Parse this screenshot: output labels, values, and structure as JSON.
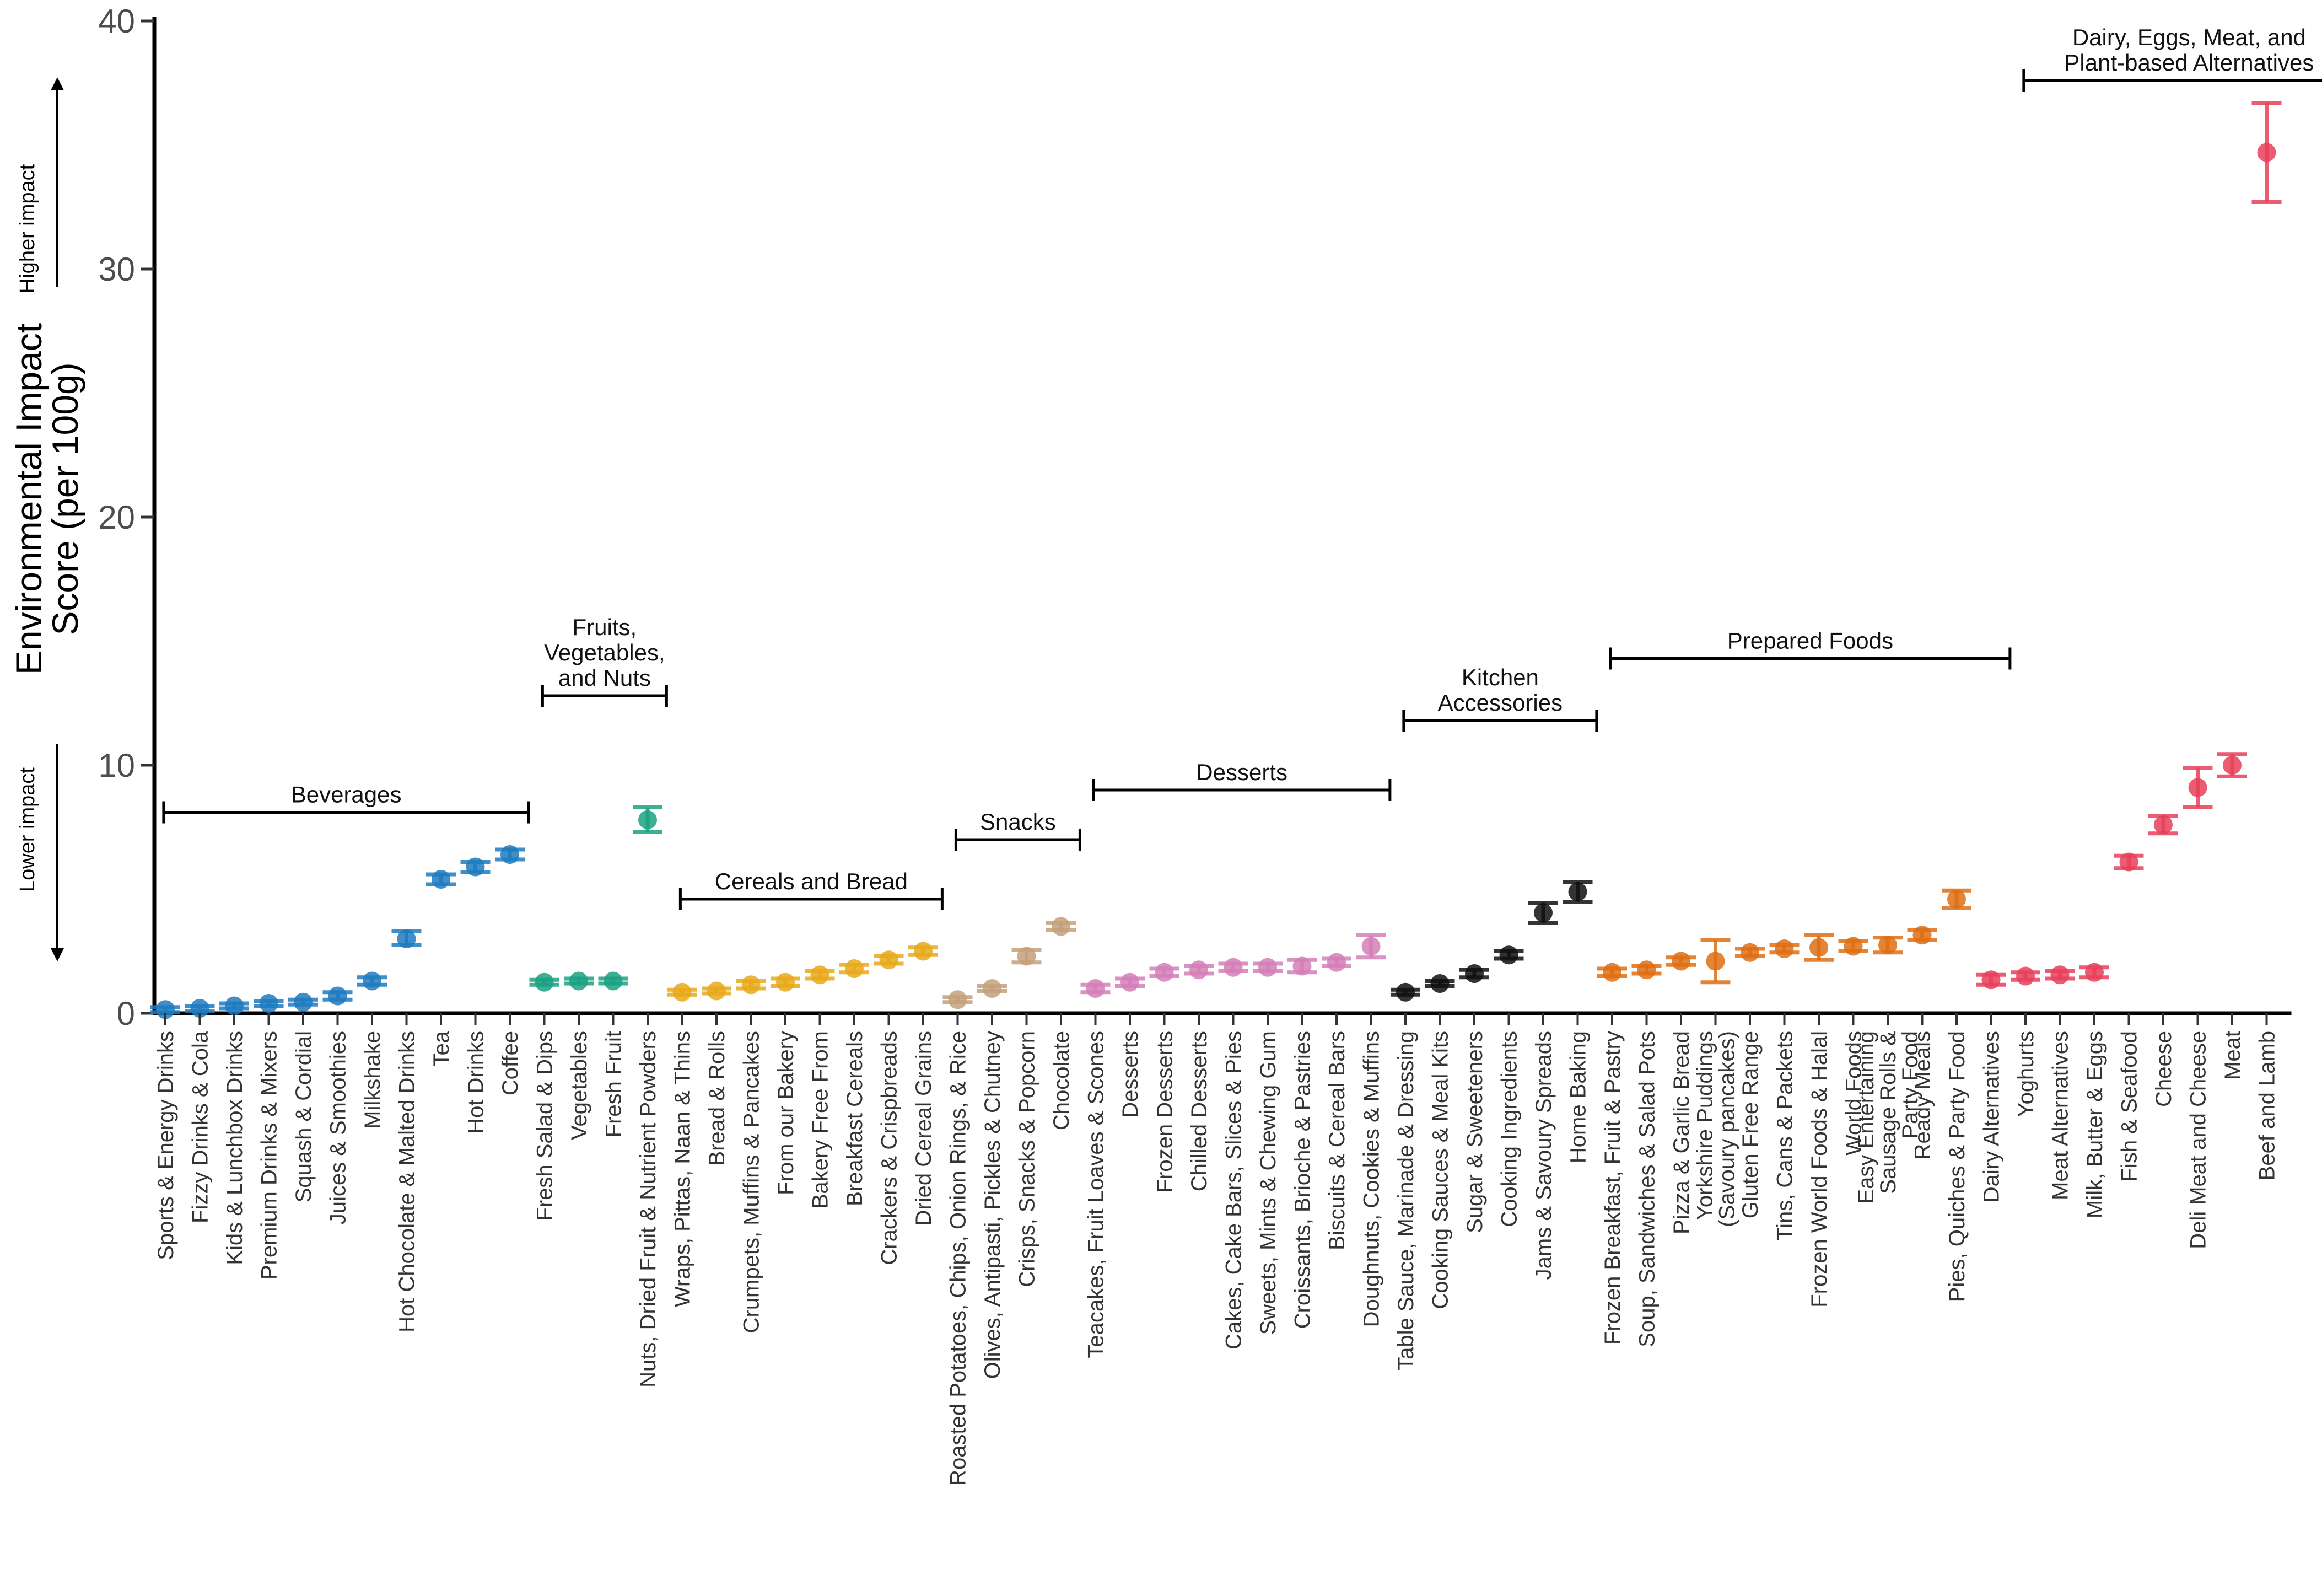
{
  "chart_data": {
    "type": "scatter",
    "ylabel_lines": [
      "Environmental Impact",
      "Score (per 100g)"
    ],
    "ylim": [
      0,
      40
    ],
    "yticks": [
      0,
      10,
      20,
      30,
      40
    ],
    "grid": false,
    "annotations": {
      "higher": "Higher impact",
      "lower": "Lower impact"
    },
    "colors": {
      "Beverages": "#1f7bbf",
      "Fruits, Vegetables, and Nuts": "#1aa183",
      "Cereals and Bread": "#e8a91a",
      "Snacks": "#c4a07a",
      "Desserts": "#d47fb8",
      "Kitchen Accessories": "#111111",
      "Prepared Foods": "#de6f14",
      "Dairy, Eggs, Meat, and Plant-based Alternatives": "#e8405a"
    },
    "groups": [
      {
        "label_lines": [
          "Beverages"
        ],
        "first": 0,
        "last": 11,
        "y": 8.1
      },
      {
        "label_lines": [
          "Fruits,",
          "Vegetables,",
          "and Nuts"
        ],
        "first": 11,
        "last": 15,
        "y": 12.8
      },
      {
        "label_lines": [
          "Cereals and Bread"
        ],
        "first": 15,
        "last": 23,
        "y": 4.6
      },
      {
        "label_lines": [
          "Snacks"
        ],
        "first": 23,
        "last": 27,
        "y": 7.0
      },
      {
        "label_lines": [
          "Desserts"
        ],
        "first": 27,
        "last": 36,
        "y": 9.0
      },
      {
        "label_lines": [
          "Kitchen",
          "Accessories"
        ],
        "first": 36,
        "last": 42,
        "y": 11.8
      },
      {
        "label_lines": [
          "Prepared Foods"
        ],
        "first": 42,
        "last": 54,
        "y": 14.3
      },
      {
        "label_lines": [
          "Dairy, Eggs, Meat, and",
          "Plant-based Alternatives"
        ],
        "first": 54,
        "last": 64,
        "y": 37.6
      }
    ],
    "series": [
      {
        "category_lines": [
          "Sports & Energy Drinks"
        ],
        "group": "Beverages",
        "value": 0.15,
        "low": 0.05,
        "high": 0.25
      },
      {
        "category_lines": [
          "Fizzy Drinks & Cola"
        ],
        "group": "Beverages",
        "value": 0.2,
        "low": 0.1,
        "high": 0.3
      },
      {
        "category_lines": [
          "Kids & Lunchbox Drinks"
        ],
        "group": "Beverages",
        "value": 0.3,
        "low": 0.2,
        "high": 0.4
      },
      {
        "category_lines": [
          "Premium Drinks & Mixers"
        ],
        "group": "Beverages",
        "value": 0.4,
        "low": 0.3,
        "high": 0.5
      },
      {
        "category_lines": [
          "Squash & Cordial"
        ],
        "group": "Beverages",
        "value": 0.45,
        "low": 0.35,
        "high": 0.55
      },
      {
        "category_lines": [
          "Juices & Smoothies"
        ],
        "group": "Beverages",
        "value": 0.7,
        "low": 0.55,
        "high": 0.85
      },
      {
        "category_lines": [
          "Milkshake"
        ],
        "group": "Beverages",
        "value": 1.3,
        "low": 1.15,
        "high": 1.45
      },
      {
        "category_lines": [
          "Hot Chocolate & Malted Drinks"
        ],
        "group": "Beverages",
        "value": 3.0,
        "low": 2.75,
        "high": 3.3
      },
      {
        "category_lines": [
          "Tea"
        ],
        "group": "Beverages",
        "value": 5.4,
        "low": 5.2,
        "high": 5.6
      },
      {
        "category_lines": [
          "Hot Drinks"
        ],
        "group": "Beverages",
        "value": 5.9,
        "low": 5.7,
        "high": 6.1
      },
      {
        "category_lines": [
          "Coffee"
        ],
        "group": "Beverages",
        "value": 6.4,
        "low": 6.2,
        "high": 6.6
      },
      {
        "category_lines": [
          "Fresh Salad & Dips"
        ],
        "group": "Fruits, Vegetables, and Nuts",
        "value": 1.25,
        "low": 1.15,
        "high": 1.35
      },
      {
        "category_lines": [
          "Vegetables"
        ],
        "group": "Fruits, Vegetables, and Nuts",
        "value": 1.3,
        "low": 1.2,
        "high": 1.4
      },
      {
        "category_lines": [
          "Fresh Fruit"
        ],
        "group": "Fruits, Vegetables, and Nuts",
        "value": 1.3,
        "low": 1.2,
        "high": 1.4
      },
      {
        "category_lines": [
          "Nuts, Dried Fruit & Nutrient Powders"
        ],
        "group": "Fruits, Vegetables, and Nuts",
        "value": 7.8,
        "low": 7.3,
        "high": 8.3
      },
      {
        "category_lines": [
          "Wraps, Pittas, Naan & Thins"
        ],
        "group": "Cereals and Bread",
        "value": 0.85,
        "low": 0.75,
        "high": 0.95
      },
      {
        "category_lines": [
          "Bread & Rolls"
        ],
        "group": "Cereals and Bread",
        "value": 0.9,
        "low": 0.8,
        "high": 1.0
      },
      {
        "category_lines": [
          "Crumpets, Muffins & Pancakes"
        ],
        "group": "Cereals and Bread",
        "value": 1.15,
        "low": 1.0,
        "high": 1.3
      },
      {
        "category_lines": [
          "From our Bakery"
        ],
        "group": "Cereals and Bread",
        "value": 1.25,
        "low": 1.1,
        "high": 1.4
      },
      {
        "category_lines": [
          "Bakery Free From"
        ],
        "group": "Cereals and Bread",
        "value": 1.55,
        "low": 1.4,
        "high": 1.7
      },
      {
        "category_lines": [
          "Breakfast Cereals"
        ],
        "group": "Cereals and Bread",
        "value": 1.8,
        "low": 1.65,
        "high": 1.95
      },
      {
        "category_lines": [
          "Crackers & Crispbreads"
        ],
        "group": "Cereals and Bread",
        "value": 2.15,
        "low": 2.0,
        "high": 2.3
      },
      {
        "category_lines": [
          "Dried Cereal Grains"
        ],
        "group": "Cereals and Bread",
        "value": 2.5,
        "low": 2.35,
        "high": 2.65
      },
      {
        "category_lines": [
          "Roasted Potatoes, Chips, Onion Rings, & Rice"
        ],
        "group": "Snacks",
        "value": 0.55,
        "low": 0.45,
        "high": 0.65
      },
      {
        "category_lines": [
          "Olives, Antipasti, Pickles & Chutney"
        ],
        "group": "Snacks",
        "value": 1.0,
        "low": 0.9,
        "high": 1.1
      },
      {
        "category_lines": [
          "Crisps, Snacks & Popcorn"
        ],
        "group": "Snacks",
        "value": 2.3,
        "low": 2.05,
        "high": 2.55
      },
      {
        "category_lines": [
          "Chocolate"
        ],
        "group": "Snacks",
        "value": 3.5,
        "low": 3.35,
        "high": 3.65
      },
      {
        "category_lines": [
          "Teacakes, Fruit Loaves & Scones"
        ],
        "group": "Desserts",
        "value": 1.0,
        "low": 0.85,
        "high": 1.15
      },
      {
        "category_lines": [
          "Desserts"
        ],
        "group": "Desserts",
        "value": 1.25,
        "low": 1.1,
        "high": 1.4
      },
      {
        "category_lines": [
          "Frozen Desserts"
        ],
        "group": "Desserts",
        "value": 1.65,
        "low": 1.5,
        "high": 1.8
      },
      {
        "category_lines": [
          "Chilled Desserts"
        ],
        "group": "Desserts",
        "value": 1.75,
        "low": 1.6,
        "high": 1.9
      },
      {
        "category_lines": [
          "Cakes, Cake Bars, Slices & Pies"
        ],
        "group": "Desserts",
        "value": 1.85,
        "low": 1.7,
        "high": 2.0
      },
      {
        "category_lines": [
          "Sweets, Mints & Chewing Gum"
        ],
        "group": "Desserts",
        "value": 1.85,
        "low": 1.7,
        "high": 2.0
      },
      {
        "category_lines": [
          "Croissants, Brioche & Pastries"
        ],
        "group": "Desserts",
        "value": 1.9,
        "low": 1.65,
        "high": 2.15
      },
      {
        "category_lines": [
          "Biscuits & Cereal Bars"
        ],
        "group": "Desserts",
        "value": 2.05,
        "low": 1.9,
        "high": 2.2
      },
      {
        "category_lines": [
          "Doughnuts, Cookies & Muffins"
        ],
        "group": "Desserts",
        "value": 2.7,
        "low": 2.25,
        "high": 3.15
      },
      {
        "category_lines": [
          "Table Sauce, Marinade & Dressing"
        ],
        "group": "Kitchen Accessories",
        "value": 0.85,
        "low": 0.75,
        "high": 0.95
      },
      {
        "category_lines": [
          "Cooking Sauces & Meal Kits"
        ],
        "group": "Kitchen Accessories",
        "value": 1.2,
        "low": 1.1,
        "high": 1.3
      },
      {
        "category_lines": [
          "Sugar & Sweeteners"
        ],
        "group": "Kitchen Accessories",
        "value": 1.6,
        "low": 1.45,
        "high": 1.75
      },
      {
        "category_lines": [
          "Cooking Ingredients"
        ],
        "group": "Kitchen Accessories",
        "value": 2.35,
        "low": 2.2,
        "high": 2.5
      },
      {
        "category_lines": [
          "Jams & Savoury Spreads"
        ],
        "group": "Kitchen Accessories",
        "value": 4.05,
        "low": 3.65,
        "high": 4.45
      },
      {
        "category_lines": [
          "Home Baking"
        ],
        "group": "Kitchen Accessories",
        "value": 4.9,
        "low": 4.5,
        "high": 5.3
      },
      {
        "category_lines": [
          "Frozen Breakfast, Fruit & Pastry"
        ],
        "group": "Prepared Foods",
        "value": 1.65,
        "low": 1.5,
        "high": 1.8
      },
      {
        "category_lines": [
          "Soup, Sandwiches & Salad Pots"
        ],
        "group": "Prepared Foods",
        "value": 1.75,
        "low": 1.6,
        "high": 1.9
      },
      {
        "category_lines": [
          "Pizza & Garlic Bread"
        ],
        "group": "Prepared Foods",
        "value": 2.1,
        "low": 1.95,
        "high": 2.25
      },
      {
        "category_lines": [
          "Yorkshire Puddings",
          "(Savoury pancakes)"
        ],
        "group": "Prepared Foods",
        "value": 2.1,
        "low": 1.25,
        "high": 2.95
      },
      {
        "category_lines": [
          "Gluten Free Range"
        ],
        "group": "Prepared Foods",
        "value": 2.45,
        "low": 2.3,
        "high": 2.6
      },
      {
        "category_lines": [
          "Tins, Cans & Packets"
        ],
        "group": "Prepared Foods",
        "value": 2.6,
        "low": 2.45,
        "high": 2.75
      },
      {
        "category_lines": [
          "Frozen World Foods & Halal"
        ],
        "group": "Prepared Foods",
        "value": 2.65,
        "low": 2.15,
        "high": 3.15
      },
      {
        "category_lines": [
          "World Foods"
        ],
        "group": "Prepared Foods",
        "value": 2.7,
        "low": 2.5,
        "high": 2.9
      },
      {
        "category_lines": [
          "Easy Entertaining",
          "Sausage Rolls &",
          "Party Food"
        ],
        "group": "Prepared Foods",
        "value": 2.75,
        "low": 2.45,
        "high": 3.05
      },
      {
        "category_lines": [
          "Ready Meals"
        ],
        "group": "Prepared Foods",
        "value": 3.15,
        "low": 2.95,
        "high": 3.35
      },
      {
        "category_lines": [
          "Pies, Quiches & Party Food"
        ],
        "group": "Prepared Foods",
        "value": 4.6,
        "low": 4.25,
        "high": 4.95
      },
      {
        "category_lines": [
          "Dairy Alternatives"
        ],
        "group": "Dairy, Eggs, Meat, and Plant-based Alternatives",
        "value": 1.35,
        "low": 1.15,
        "high": 1.55
      },
      {
        "category_lines": [
          "Yoghurts"
        ],
        "group": "Dairy, Eggs, Meat, and Plant-based Alternatives",
        "value": 1.5,
        "low": 1.35,
        "high": 1.65
      },
      {
        "category_lines": [
          "Meat Alternatives"
        ],
        "group": "Dairy, Eggs, Meat, and Plant-based Alternatives",
        "value": 1.55,
        "low": 1.4,
        "high": 1.7
      },
      {
        "category_lines": [
          "Milk, Butter & Eggs"
        ],
        "group": "Dairy, Eggs, Meat, and Plant-based Alternatives",
        "value": 1.65,
        "low": 1.45,
        "high": 1.85
      },
      {
        "category_lines": [
          "Fish & Seafood"
        ],
        "group": "Dairy, Eggs, Meat, and Plant-based Alternatives",
        "value": 6.1,
        "low": 5.85,
        "high": 6.35
      },
      {
        "category_lines": [
          "Cheese"
        ],
        "group": "Dairy, Eggs, Meat, and Plant-based Alternatives",
        "value": 7.6,
        "low": 7.25,
        "high": 7.95
      },
      {
        "category_lines": [
          "Deli Meat and Cheese"
        ],
        "group": "Dairy, Eggs, Meat, and Plant-based Alternatives",
        "value": 9.1,
        "low": 8.3,
        "high": 9.9
      },
      {
        "category_lines": [
          "Meat"
        ],
        "group": "Dairy, Eggs, Meat, and Plant-based Alternatives",
        "value": 10.0,
        "low": 9.55,
        "high": 10.45
      },
      {
        "category_lines": [
          "Beef and Lamb"
        ],
        "group": "Dairy, Eggs, Meat, and Plant-based Alternatives",
        "value": 34.7,
        "low": 32.7,
        "high": 36.7
      }
    ]
  }
}
